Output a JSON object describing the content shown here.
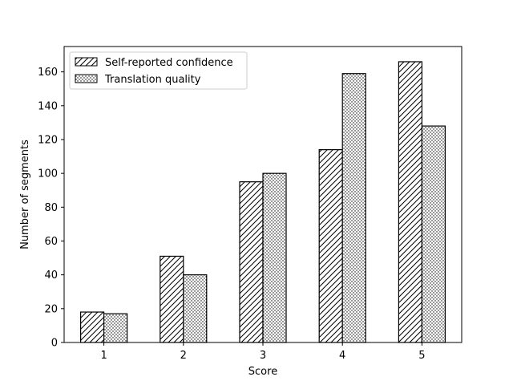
{
  "chart_data": {
    "type": "bar",
    "title": "",
    "xlabel": "Score",
    "ylabel": "Number of segments",
    "categories": [
      "1",
      "2",
      "3",
      "4",
      "5"
    ],
    "series": [
      {
        "name": "Self-reported confidence",
        "values": [
          18,
          51,
          95,
          114,
          166
        ],
        "pattern": "diagonal-hatch"
      },
      {
        "name": "Translation quality",
        "values": [
          17,
          40,
          100,
          159,
          128
        ],
        "pattern": "dot-hatch"
      }
    ],
    "ylim": [
      0,
      175
    ],
    "yticks": [
      0,
      20,
      40,
      60,
      80,
      100,
      120,
      140,
      160
    ],
    "grid": false,
    "legend_position": "top-left",
    "colors": {
      "bar_fill": "#ffffff",
      "bar_edge": "#000000",
      "hatch": "#000000"
    }
  }
}
